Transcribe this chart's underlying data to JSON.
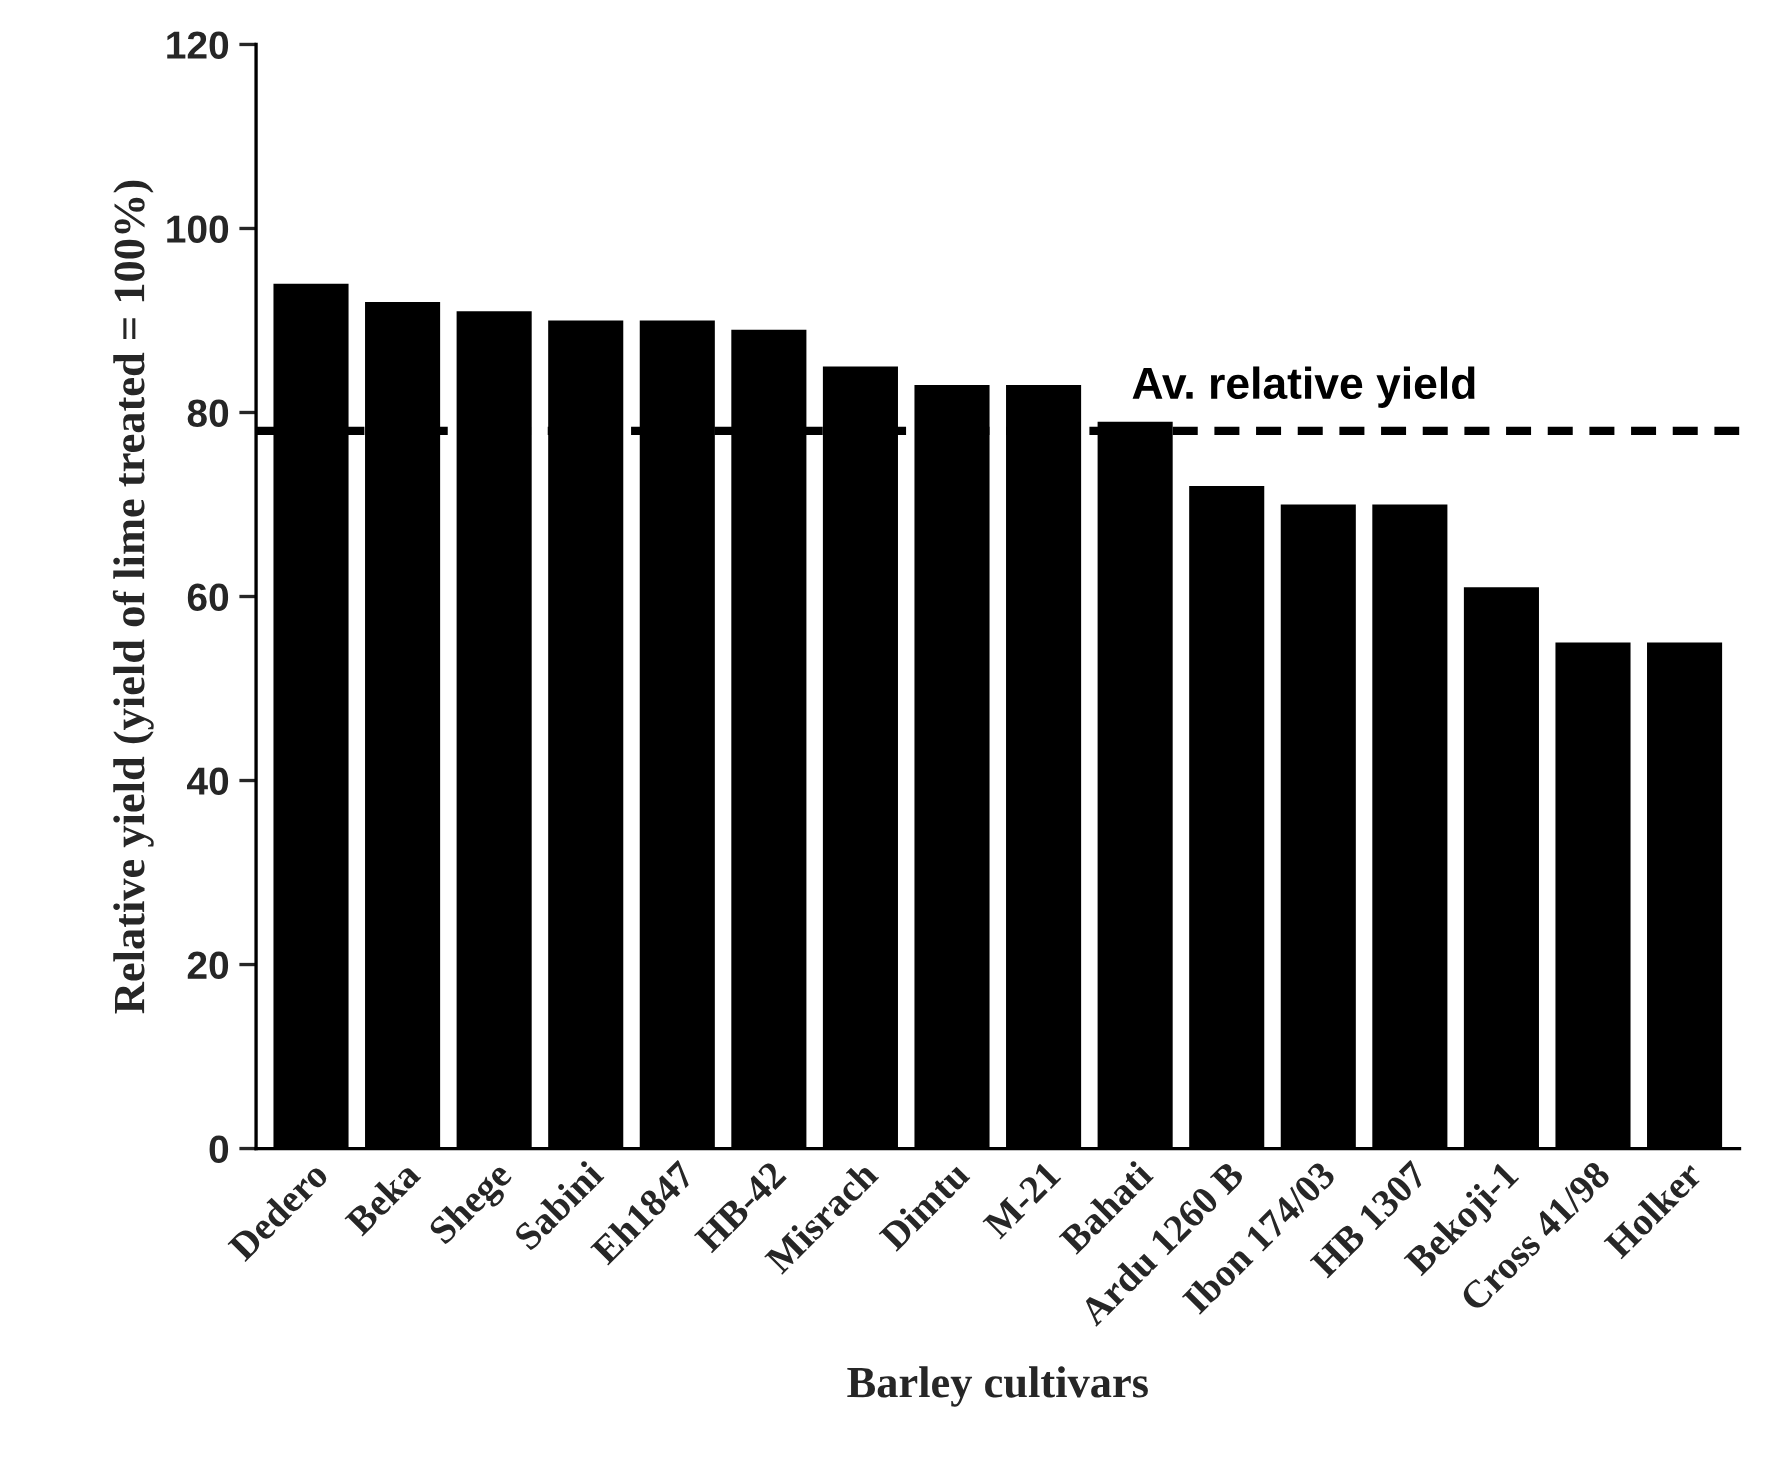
{
  "chart_data": {
    "type": "bar",
    "xlabel": "Barley cultivars",
    "ylabel": "Relative yield (yield of lime treated = 100%)",
    "categories": [
      "Dedero",
      "Beka",
      "Shege",
      "Sabini",
      "Eh1847",
      "HB-42",
      "Misrach",
      "Dimtu",
      "M-21",
      "Bahati",
      "Ardu 1260 B",
      "Ibon 174/03",
      "HB 1307",
      "Bekoji-1",
      "Cross 41/98",
      "Holker"
    ],
    "values": [
      94,
      92,
      91,
      90,
      90,
      89,
      85,
      83,
      83,
      79,
      72,
      70,
      70,
      61,
      55,
      55
    ],
    "color": "#000000",
    "ylim": [
      0,
      120
    ],
    "yticks": [
      0,
      20,
      40,
      60,
      80,
      100,
      120
    ],
    "grid": false,
    "ref_lines": [
      {
        "axis": "y",
        "value": 78,
        "label": "Av. relative yield",
        "color": "#000000",
        "line_style": "dashed"
      }
    ]
  }
}
